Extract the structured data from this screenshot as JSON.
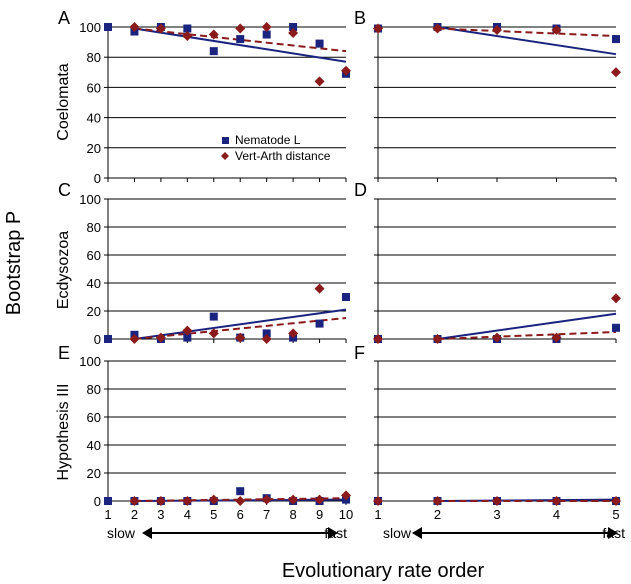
{
  "figure": {
    "ylabel": "Bootstrap P",
    "xlabel": "Evolutionary rate order",
    "slow_label": "slow",
    "fast_label": "fast"
  },
  "colors": {
    "nematode": "#1a237e",
    "vertarth": "#8b1a1a",
    "trend_solid": "#1a237e",
    "trend_dashed": "#8b1a1a",
    "grid": "#000000"
  },
  "chart_data": [
    {
      "panel": "A",
      "type": "scatter",
      "row_label": "Coelomata",
      "x": [
        1,
        2,
        3,
        4,
        5,
        6,
        7,
        8,
        9,
        10
      ],
      "xticks": [
        "1",
        "2",
        "3",
        "4",
        "5",
        "6",
        "7",
        "8",
        "9",
        "10"
      ],
      "ylim": [
        0,
        100
      ],
      "yticks": [
        "0",
        "20",
        "40",
        "60",
        "80",
        "100"
      ],
      "grid": true,
      "legend": {
        "placement": "bottom-center",
        "entries": [
          "Nematode L",
          "Vert-Arth distance"
        ]
      },
      "series": [
        {
          "name": "Nematode L",
          "marker": "square",
          "values": [
            100,
            97,
            100,
            99,
            84,
            92,
            95,
            100,
            89,
            69
          ]
        },
        {
          "name": "Vert-Arth distance",
          "marker": "diamond",
          "values": [
            null,
            100,
            99,
            94,
            95,
            99,
            100,
            96,
            64,
            71
          ]
        }
      ],
      "trendlines": [
        {
          "style": "solid",
          "from": [
            2,
            99
          ],
          "to": [
            10,
            77
          ]
        },
        {
          "style": "dashed",
          "from": [
            2,
            99
          ],
          "to": [
            10,
            84
          ]
        }
      ]
    },
    {
      "panel": "B",
      "type": "scatter",
      "x": [
        1,
        2,
        3,
        4,
        5
      ],
      "xticks": [
        "1",
        "2",
        "3",
        "4",
        "5"
      ],
      "ylim": [
        0,
        100
      ],
      "grid": true,
      "series": [
        {
          "name": "Nematode L",
          "marker": "square",
          "values": [
            99,
            100,
            100,
            99,
            92
          ]
        },
        {
          "name": "Vert-Arth distance",
          "marker": "diamond",
          "values": [
            99,
            99,
            98,
            98,
            70
          ]
        }
      ],
      "trendlines": [
        {
          "style": "solid",
          "from": [
            2,
            100
          ],
          "to": [
            5,
            82
          ]
        },
        {
          "style": "dashed",
          "from": [
            2,
            99
          ],
          "to": [
            5,
            94
          ]
        }
      ]
    },
    {
      "panel": "C",
      "type": "scatter",
      "row_label": "Ecdysozoa",
      "x": [
        1,
        2,
        3,
        4,
        5,
        6,
        7,
        8,
        9,
        10
      ],
      "xticks": [
        "1",
        "2",
        "3",
        "4",
        "5",
        "6",
        "7",
        "8",
        "9",
        "10"
      ],
      "ylim": [
        0,
        100
      ],
      "yticks": [
        "0",
        "20",
        "40",
        "60",
        "80",
        "100"
      ],
      "grid": true,
      "series": [
        {
          "name": "Nematode L",
          "marker": "square",
          "values": [
            0,
            3,
            0,
            1,
            16,
            1,
            4,
            1,
            11,
            30
          ]
        },
        {
          "name": "Vert-Arth distance",
          "marker": "diamond",
          "values": [
            null,
            0,
            1,
            6,
            4,
            1,
            0,
            4,
            36,
            null
          ]
        }
      ],
      "trendlines": [
        {
          "style": "solid",
          "from": [
            2,
            0
          ],
          "to": [
            10,
            21
          ]
        },
        {
          "style": "dashed",
          "from": [
            2,
            0
          ],
          "to": [
            10,
            15
          ]
        }
      ]
    },
    {
      "panel": "D",
      "type": "scatter",
      "x": [
        1,
        2,
        3,
        4,
        5
      ],
      "xticks": [
        "1",
        "2",
        "3",
        "4",
        "5"
      ],
      "ylim": [
        0,
        100
      ],
      "grid": true,
      "series": [
        {
          "name": "Nematode L",
          "marker": "square",
          "values": [
            0,
            0,
            0,
            0,
            8
          ]
        },
        {
          "name": "Vert-Arth distance",
          "marker": "diamond",
          "values": [
            0,
            0,
            1,
            1,
            29
          ]
        }
      ],
      "trendlines": [
        {
          "style": "solid",
          "from": [
            2,
            0
          ],
          "to": [
            5,
            18
          ]
        },
        {
          "style": "dashed",
          "from": [
            2,
            0
          ],
          "to": [
            5,
            5
          ]
        }
      ]
    },
    {
      "panel": "E",
      "type": "scatter",
      "row_label": "Hypothesis III",
      "x": [
        1,
        2,
        3,
        4,
        5,
        6,
        7,
        8,
        9,
        10
      ],
      "xticks": [
        "1",
        "2",
        "3",
        "4",
        "5",
        "6",
        "7",
        "8",
        "9",
        "10"
      ],
      "ylim": [
        0,
        100
      ],
      "yticks": [
        "0",
        "20",
        "40",
        "60",
        "80",
        "100"
      ],
      "grid": true,
      "series": [
        {
          "name": "Nematode L",
          "marker": "square",
          "values": [
            0,
            0,
            0,
            0,
            0,
            7,
            2,
            0,
            0,
            1
          ]
        },
        {
          "name": "Vert-Arth distance",
          "marker": "diamond",
          "values": [
            null,
            0,
            0,
            0,
            1,
            0,
            1,
            1,
            1,
            4
          ]
        }
      ],
      "trendlines": [
        {
          "style": "solid",
          "from": [
            2,
            0
          ],
          "to": [
            10,
            1
          ]
        },
        {
          "style": "dashed",
          "from": [
            2,
            0
          ],
          "to": [
            10,
            2
          ]
        }
      ]
    },
    {
      "panel": "F",
      "type": "scatter",
      "x": [
        1,
        2,
        3,
        4,
        5
      ],
      "xticks": [
        "1",
        "2",
        "3",
        "4",
        "5"
      ],
      "ylim": [
        0,
        100
      ],
      "grid": true,
      "series": [
        {
          "name": "Nematode L",
          "marker": "square",
          "values": [
            0,
            0,
            0,
            0,
            0
          ]
        },
        {
          "name": "Vert-Arth distance",
          "marker": "diamond",
          "values": [
            0,
            0,
            0,
            0,
            0
          ]
        }
      ],
      "trendlines": [
        {
          "style": "solid",
          "from": [
            2,
            0
          ],
          "to": [
            5,
            1
          ]
        },
        {
          "style": "dashed",
          "from": [
            2,
            0
          ],
          "to": [
            5,
            0
          ]
        }
      ]
    }
  ]
}
